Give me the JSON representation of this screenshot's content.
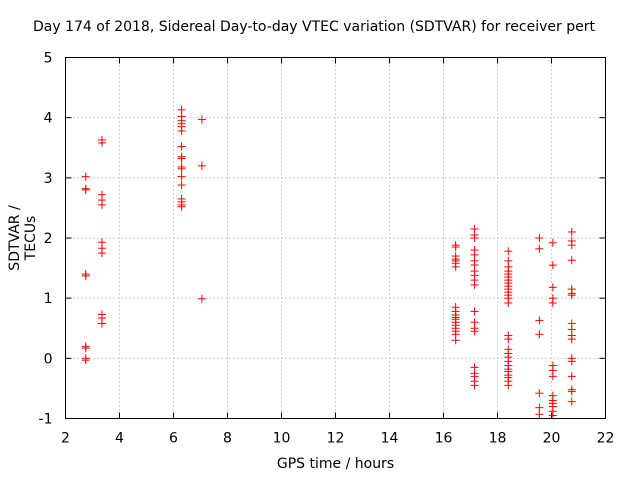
{
  "chart_data": {
    "type": "scatter",
    "title": "Day 174 of 2018, Sidereal Day-to-day VTEC variation (SDTVAR) for receiver pert",
    "xlabel": "GPS time / hours",
    "ylabel": "SDTVAR / TECUs",
    "xlim": [
      2,
      22
    ],
    "ylim": [
      -1,
      5
    ],
    "xticks": [
      "2",
      "4",
      "6",
      "8",
      "10",
      "12",
      "14",
      "16",
      "18",
      "20",
      "22"
    ],
    "yticks": [
      "-1",
      "0",
      "1",
      "2",
      "3",
      "4",
      "5"
    ],
    "grid": true,
    "marker": "+",
    "color": "#ff0000",
    "series": [
      {
        "name": "SDTVAR",
        "points": [
          [
            2.75,
            3.02
          ],
          [
            2.75,
            2.82
          ],
          [
            2.75,
            2.8
          ],
          [
            2.75,
            1.4
          ],
          [
            2.75,
            1.37
          ],
          [
            2.75,
            0.2
          ],
          [
            2.75,
            0.17
          ],
          [
            2.75,
            0.0
          ],
          [
            2.75,
            -0.03
          ],
          [
            3.35,
            3.63
          ],
          [
            3.35,
            3.58
          ],
          [
            3.35,
            2.72
          ],
          [
            3.35,
            2.63
          ],
          [
            3.35,
            2.55
          ],
          [
            3.35,
            1.93
          ],
          [
            3.35,
            1.83
          ],
          [
            3.35,
            1.75
          ],
          [
            3.35,
            0.73
          ],
          [
            3.35,
            0.67
          ],
          [
            3.35,
            0.58
          ],
          [
            6.3,
            4.13
          ],
          [
            6.3,
            4.02
          ],
          [
            6.3,
            3.95
          ],
          [
            6.3,
            3.9
          ],
          [
            6.3,
            3.85
          ],
          [
            6.3,
            3.78
          ],
          [
            6.3,
            3.52
          ],
          [
            6.3,
            3.35
          ],
          [
            6.3,
            3.32
          ],
          [
            6.3,
            3.18
          ],
          [
            6.3,
            3.15
          ],
          [
            6.3,
            3.02
          ],
          [
            6.3,
            2.88
          ],
          [
            6.3,
            2.65
          ],
          [
            6.3,
            2.6
          ],
          [
            6.3,
            2.55
          ],
          [
            6.3,
            2.52
          ],
          [
            7.05,
            3.97
          ],
          [
            7.05,
            3.2
          ],
          [
            7.05,
            0.99
          ],
          [
            16.45,
            1.88
          ],
          [
            16.45,
            1.85
          ],
          [
            16.45,
            1.7
          ],
          [
            16.45,
            1.65
          ],
          [
            16.45,
            1.62
          ],
          [
            16.45,
            1.58
          ],
          [
            16.45,
            1.52
          ],
          [
            16.45,
            0.85
          ],
          [
            16.45,
            0.78
          ],
          [
            16.45,
            0.72
          ],
          [
            16.45,
            0.68
          ],
          [
            16.45,
            0.65
          ],
          [
            16.45,
            0.6
          ],
          [
            16.45,
            0.55
          ],
          [
            16.45,
            0.5
          ],
          [
            16.45,
            0.45
          ],
          [
            16.45,
            0.4
          ],
          [
            16.45,
            0.3
          ],
          [
            17.15,
            2.15
          ],
          [
            17.15,
            2.05
          ],
          [
            17.15,
            2.0
          ],
          [
            17.15,
            1.8
          ],
          [
            17.15,
            1.72
          ],
          [
            17.15,
            1.62
          ],
          [
            17.15,
            1.55
          ],
          [
            17.15,
            1.45
          ],
          [
            17.15,
            1.38
          ],
          [
            17.15,
            1.3
          ],
          [
            17.15,
            1.22
          ],
          [
            17.15,
            0.78
          ],
          [
            17.15,
            0.6
          ],
          [
            17.15,
            0.5
          ],
          [
            17.15,
            0.45
          ],
          [
            17.15,
            -0.15
          ],
          [
            17.15,
            -0.25
          ],
          [
            17.15,
            -0.3
          ],
          [
            17.15,
            -0.38
          ],
          [
            17.15,
            -0.45
          ],
          [
            18.4,
            1.78
          ],
          [
            18.4,
            1.62
          ],
          [
            18.4,
            1.52
          ],
          [
            18.4,
            1.45
          ],
          [
            18.4,
            1.4
          ],
          [
            18.4,
            1.35
          ],
          [
            18.4,
            1.3
          ],
          [
            18.4,
            1.25
          ],
          [
            18.4,
            1.2
          ],
          [
            18.4,
            1.15
          ],
          [
            18.4,
            1.1
          ],
          [
            18.4,
            1.05
          ],
          [
            18.4,
            1.0
          ],
          [
            18.4,
            0.92
          ],
          [
            18.4,
            0.38
          ],
          [
            18.4,
            0.32
          ],
          [
            18.4,
            0.15
          ],
          [
            18.4,
            0.08
          ],
          [
            18.4,
            0.02
          ],
          [
            18.4,
            -0.05
          ],
          [
            18.4,
            -0.12
          ],
          [
            18.4,
            -0.18
          ],
          [
            18.4,
            -0.22
          ],
          [
            18.4,
            -0.28
          ],
          [
            18.4,
            -0.32
          ],
          [
            18.4,
            -0.38
          ],
          [
            18.4,
            -0.45
          ],
          [
            19.55,
            2.0
          ],
          [
            19.55,
            1.82
          ],
          [
            19.55,
            0.63
          ],
          [
            19.55,
            0.4
          ],
          [
            19.55,
            -0.58
          ],
          [
            19.55,
            -0.82
          ],
          [
            19.55,
            -0.93
          ],
          [
            20.05,
            1.92
          ],
          [
            20.05,
            1.55
          ],
          [
            20.05,
            1.18
          ],
          [
            20.05,
            1.0
          ],
          [
            20.05,
            0.92
          ],
          [
            20.05,
            -0.12
          ],
          [
            20.05,
            -0.2
          ],
          [
            20.05,
            -0.3
          ],
          [
            20.05,
            -0.62
          ],
          [
            20.05,
            -0.7
          ],
          [
            20.05,
            -0.75
          ],
          [
            20.05,
            -0.8
          ],
          [
            20.05,
            -0.88
          ],
          [
            20.05,
            -0.95
          ],
          [
            20.75,
            2.1
          ],
          [
            20.75,
            1.95
          ],
          [
            20.75,
            1.88
          ],
          [
            20.75,
            1.63
          ],
          [
            20.75,
            1.15
          ],
          [
            20.75,
            1.08
          ],
          [
            20.75,
            1.05
          ],
          [
            20.75,
            0.58
          ],
          [
            20.75,
            0.48
          ],
          [
            20.75,
            0.38
          ],
          [
            20.75,
            0.32
          ],
          [
            20.75,
            0.0
          ],
          [
            20.75,
            -0.05
          ],
          [
            20.75,
            -0.3
          ],
          [
            20.75,
            -0.52
          ],
          [
            20.75,
            -0.55
          ],
          [
            20.75,
            -0.72
          ]
        ]
      }
    ]
  }
}
